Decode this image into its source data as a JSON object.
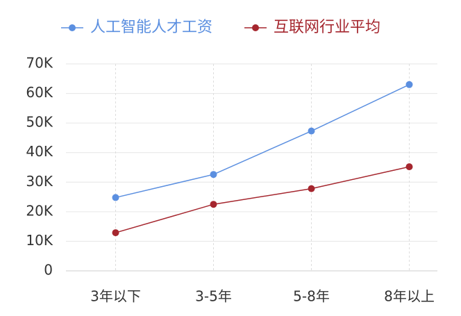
{
  "chart_data": {
    "type": "line",
    "categories": [
      "3年以下",
      "3-5年",
      "5-8年",
      "8年以上"
    ],
    "series": [
      {
        "name": "人工智能人才工资",
        "color": "#5b8fe0",
        "values": [
          24800,
          32600,
          47300,
          63000
        ]
      },
      {
        "name": "互联网行业平均",
        "color": "#a5262e",
        "values": [
          12900,
          22500,
          27800,
          35200
        ]
      }
    ],
    "ylim": [
      0,
      70000
    ],
    "yticks": [
      0,
      {
        "value": 10000,
        "label": "10K"
      },
      {
        "value": 20000,
        "label": "20K"
      },
      {
        "value": 30000,
        "label": "30K"
      },
      {
        "value": 40000,
        "label": "40K"
      },
      {
        "value": 50000,
        "label": "50K"
      },
      {
        "value": 60000,
        "label": "60K"
      },
      {
        "value": 70000,
        "label": "70K"
      }
    ],
    "grid": true,
    "legend": "top"
  }
}
